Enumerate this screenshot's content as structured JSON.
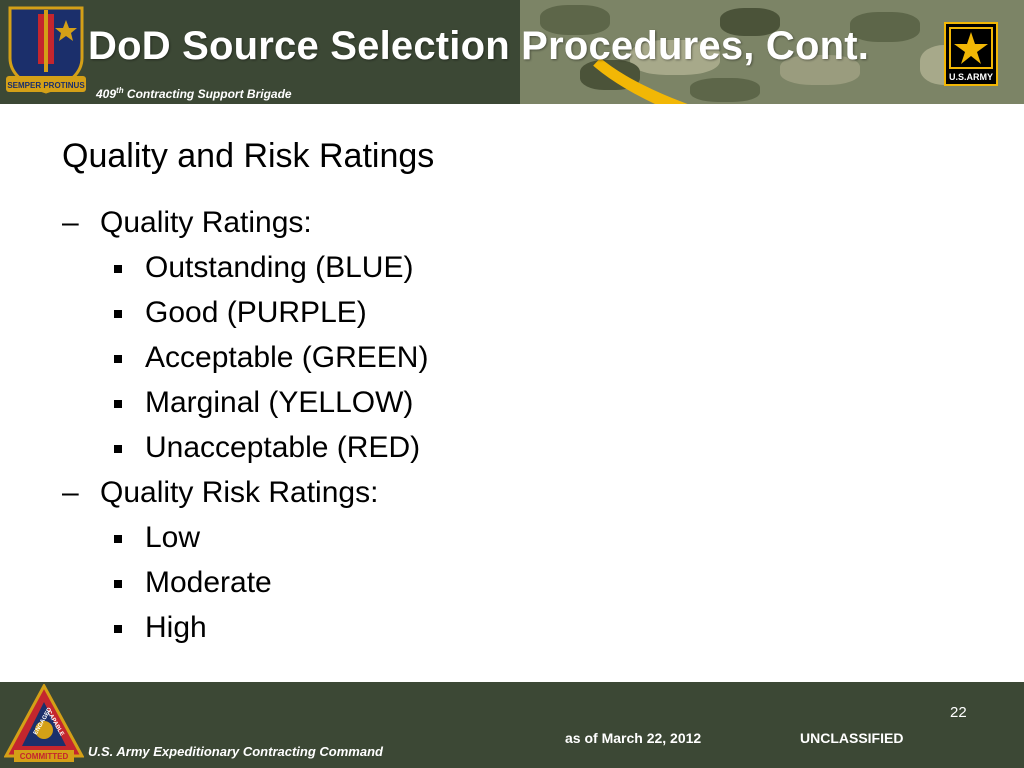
{
  "header": {
    "title": "DoD Source Selection Procedures, Cont.",
    "subtitle_num": "409",
    "subtitle_sup": "th",
    "subtitle_rest": " Contracting Support Brigade",
    "crest_motto": "SEMPER PROTINUS",
    "army_logo_text": "U.S.ARMY"
  },
  "slide": {
    "heading": "Quality and Risk Ratings",
    "items": [
      {
        "level": 1,
        "marker": "–",
        "text": "Quality Ratings:"
      },
      {
        "level": 2,
        "marker": "■",
        "text": "Outstanding (BLUE)"
      },
      {
        "level": 2,
        "marker": "■",
        "text": "Good  (PURPLE)"
      },
      {
        "level": 2,
        "marker": "■",
        "text": "Acceptable (GREEN)"
      },
      {
        "level": 2,
        "marker": "■",
        "text": "Marginal (YELLOW)"
      },
      {
        "level": 2,
        "marker": "■",
        "text": "Unacceptable (RED)"
      },
      {
        "level": 1,
        "marker": "–",
        "text": "Quality Risk Ratings:"
      },
      {
        "level": 2,
        "marker": "■",
        "text": "Low"
      },
      {
        "level": 2,
        "marker": "■",
        "text": "Moderate"
      },
      {
        "level": 2,
        "marker": "■",
        "text": "High"
      }
    ]
  },
  "footer": {
    "page_number": "22",
    "as_of": "as of March 22, 2012",
    "classification": "UNCLASSIFIED",
    "org": "U.S. Army Expeditionary Contracting Command",
    "crest_text_top": "ENGAGED",
    "crest_text_right": "CAPABLE",
    "crest_text_bottom": "COMMITTED"
  },
  "colors": {
    "header_bg": "#3c4835",
    "accent_yellow": "#f2b705",
    "text": "#000000"
  }
}
